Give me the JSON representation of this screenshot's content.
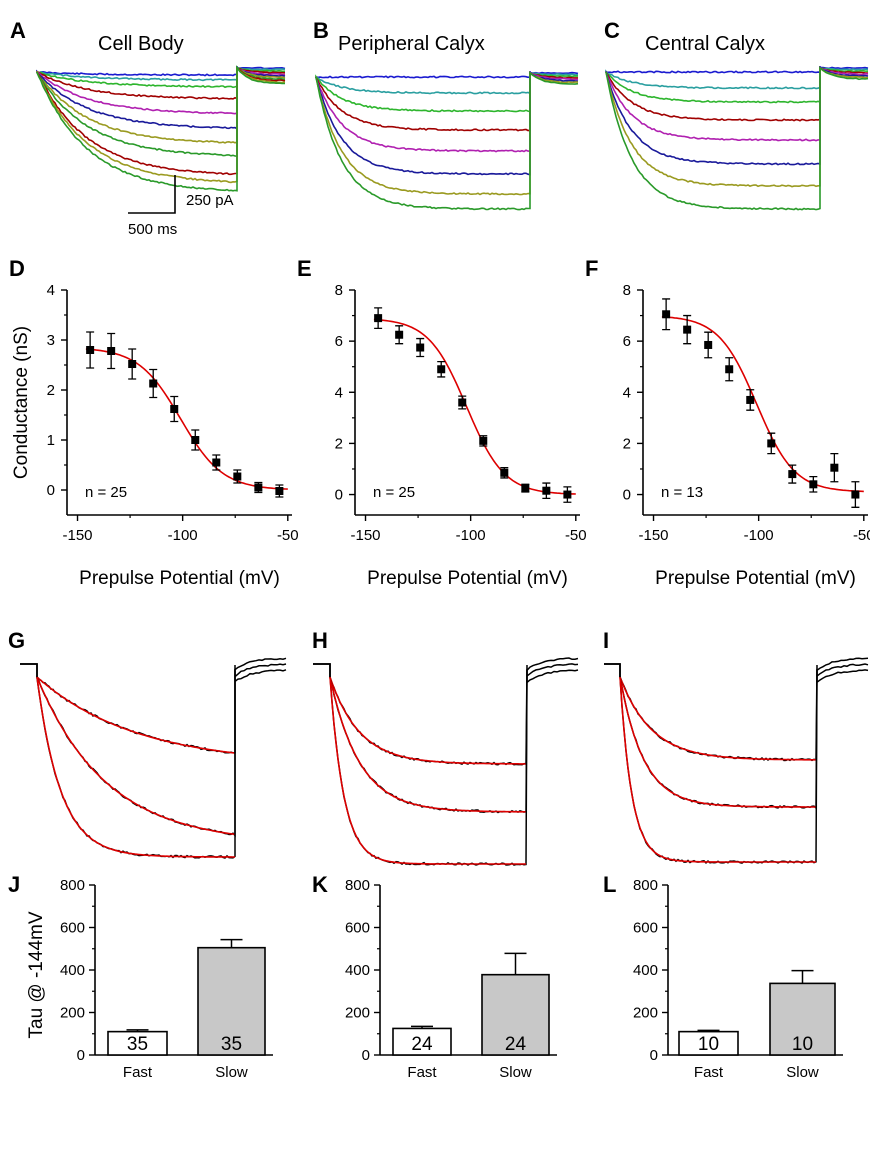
{
  "chart_data": [
    {
      "panel": "A",
      "type": "line",
      "title": "Cell Body",
      "series_colors": [
        "#1a1ad0",
        "#2a9fa0",
        "#2db52d",
        "#a00000",
        "#b020b0",
        "#1a1a9a",
        "#9a9a20",
        "#2a9a2a"
      ]
    },
    {
      "panel": "B",
      "type": "line",
      "title": "Peripheral Calyx",
      "series_colors": [
        "#1a1ad0",
        "#2a9fa0",
        "#2db52d",
        "#a00000",
        "#b020b0",
        "#1a1a9a",
        "#9a9a20",
        "#2a9a2a"
      ]
    },
    {
      "panel": "C",
      "type": "line",
      "title": "Central Calyx",
      "series_colors": [
        "#1a1ad0",
        "#2a9fa0",
        "#2db52d",
        "#a00000",
        "#b020b0",
        "#1a1a9a",
        "#9a9a20",
        "#2a9a2a"
      ],
      "scale_bar": {
        "current": "250 pA",
        "time": "500 ms"
      }
    },
    {
      "panel": "D",
      "type": "scatter",
      "ylabel": "Conductance (nS)",
      "xlabel": "Prepulse Potential (mV)",
      "xlim": [
        -155,
        -48
      ],
      "ylim": [
        -0.5,
        4
      ],
      "xticks": [
        -150,
        -100,
        -50
      ],
      "yticks": [
        0,
        1,
        2,
        3,
        4
      ],
      "annotation": "n = 25",
      "x": [
        -144,
        -134,
        -124,
        -114,
        -104,
        -94,
        -84,
        -74,
        -64,
        -54
      ],
      "y": [
        2.8,
        2.78,
        2.52,
        2.13,
        1.62,
        1.0,
        0.55,
        0.27,
        0.05,
        -0.02
      ],
      "err": [
        0.36,
        0.35,
        0.3,
        0.28,
        0.25,
        0.2,
        0.15,
        0.13,
        0.1,
        0.12
      ],
      "fit": {
        "color": "#dd0000",
        "gmax": 2.85,
        "vhalf": -101,
        "k": 10,
        "offset": 0
      }
    },
    {
      "panel": "E",
      "type": "scatter",
      "ylabel": "",
      "xlabel": "Prepulse Potential (mV)",
      "xlim": [
        -155,
        -48
      ],
      "ylim": [
        -0.8,
        8
      ],
      "xticks": [
        -150,
        -100,
        -50
      ],
      "yticks": [
        0,
        2,
        4,
        6,
        8
      ],
      "annotation": "n = 25",
      "x": [
        -144,
        -134,
        -124,
        -114,
        -104,
        -94,
        -84,
        -74,
        -64,
        -54
      ],
      "y": [
        6.9,
        6.25,
        5.75,
        4.9,
        3.6,
        2.1,
        0.85,
        0.25,
        0.15,
        0.0
      ],
      "err": [
        0.4,
        0.35,
        0.35,
        0.3,
        0.25,
        0.2,
        0.2,
        0.15,
        0.3,
        0.3
      ],
      "fit": {
        "color": "#dd0000",
        "gmax": 6.9,
        "vhalf": -102,
        "k": 9,
        "offset": 0
      }
    },
    {
      "panel": "F",
      "type": "scatter",
      "ylabel": "",
      "xlabel": "Prepulse Potential (mV)",
      "xlim": [
        -155,
        -48
      ],
      "ylim": [
        -0.8,
        8
      ],
      "xticks": [
        -150,
        -100,
        -50
      ],
      "yticks": [
        0,
        2,
        4,
        6,
        8
      ],
      "annotation": "n = 13",
      "x": [
        -144,
        -134,
        -124,
        -114,
        -104,
        -94,
        -84,
        -74,
        -64,
        -54
      ],
      "y": [
        7.05,
        6.45,
        5.85,
        4.9,
        3.7,
        2.0,
        0.8,
        0.4,
        1.05,
        0.0
      ],
      "err": [
        0.6,
        0.55,
        0.5,
        0.45,
        0.4,
        0.4,
        0.35,
        0.3,
        0.55,
        0.5
      ],
      "fit": {
        "color": "#dd0000",
        "gmax": 7.0,
        "vhalf": -101,
        "k": 9,
        "offset": 0.1
      }
    },
    {
      "panel": "G",
      "type": "line",
      "trace_color": "#000000",
      "fit_color": "#dd0000"
    },
    {
      "panel": "H",
      "type": "line",
      "trace_color": "#000000",
      "fit_color": "#dd0000"
    },
    {
      "panel": "I",
      "type": "line",
      "trace_color": "#000000",
      "fit_color": "#dd0000"
    },
    {
      "panel": "J",
      "type": "bar",
      "ylabel": "Tau @ -144mV",
      "categories": [
        "Fast",
        "Slow"
      ],
      "values": [
        110,
        505
      ],
      "err": [
        8,
        38
      ],
      "n": [
        "35",
        "35"
      ],
      "colors": [
        "#ffffff",
        "#c8c8c8"
      ],
      "ylim": [
        0,
        800
      ],
      "yticks": [
        0,
        200,
        400,
        600,
        800
      ]
    },
    {
      "panel": "K",
      "type": "bar",
      "ylabel": "",
      "categories": [
        "Fast",
        "Slow"
      ],
      "values": [
        125,
        378
      ],
      "err": [
        10,
        100
      ],
      "n": [
        "24",
        "24"
      ],
      "colors": [
        "#ffffff",
        "#c8c8c8"
      ],
      "ylim": [
        0,
        800
      ],
      "yticks": [
        0,
        200,
        400,
        600,
        800
      ]
    },
    {
      "panel": "L",
      "type": "bar",
      "ylabel": "",
      "categories": [
        "Fast",
        "Slow"
      ],
      "values": [
        110,
        337
      ],
      "err": [
        6,
        60
      ],
      "n": [
        "10",
        "10"
      ],
      "colors": [
        "#ffffff",
        "#c8c8c8"
      ],
      "ylim": [
        0,
        800
      ],
      "yticks": [
        0,
        200,
        400,
        600,
        800
      ]
    }
  ]
}
